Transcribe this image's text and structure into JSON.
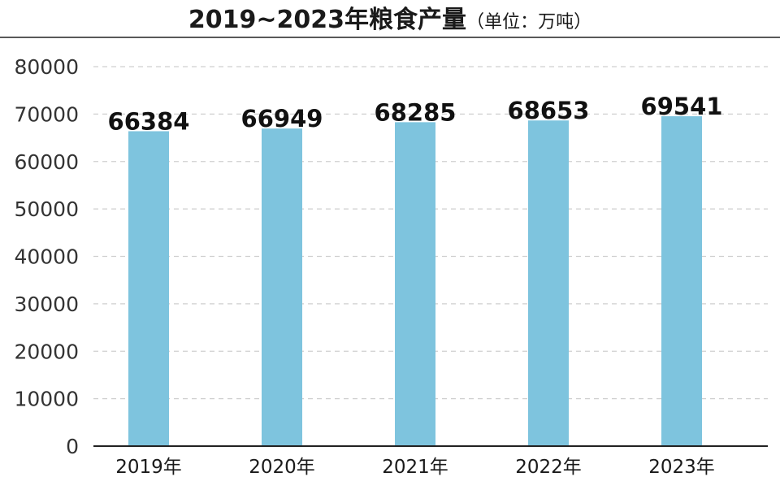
{
  "chart_data": {
    "type": "bar",
    "title": "2019~2023年粮食产量",
    "subtitle": "（单位：万吨）",
    "xlabel": "",
    "ylabel": "",
    "categories": [
      "2019年",
      "2020年",
      "2021年",
      "2022年",
      "2023年"
    ],
    "values": [
      66384,
      66949,
      68285,
      68653,
      69541
    ],
    "data_labels": [
      "66384",
      "66949",
      "68285",
      "68653",
      "69541"
    ],
    "ylim": [
      0,
      80000
    ],
    "yticks": [
      0,
      10000,
      20000,
      30000,
      40000,
      50000,
      60000,
      70000,
      80000
    ],
    "ytick_labels": [
      "0",
      "10000",
      "20000",
      "30000",
      "40000",
      "50000",
      "60000",
      "70000",
      "80000"
    ],
    "grid": true,
    "legend": "none",
    "colors": {
      "bar": "#7ec4de",
      "grid": "#cfcfcf",
      "axis": "#222222",
      "text": "#1a1a1a"
    }
  }
}
